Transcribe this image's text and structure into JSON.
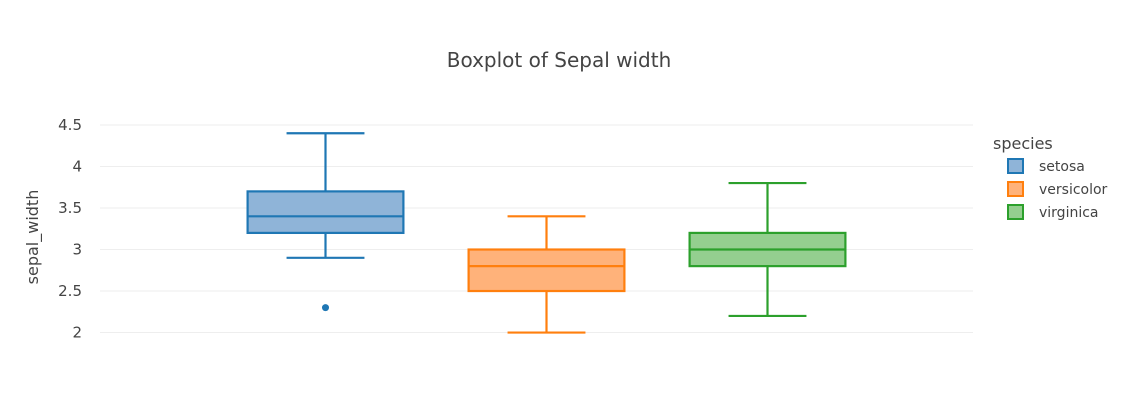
{
  "chart_data": {
    "type": "box",
    "title": "Boxplot of Sepal width",
    "xlabel": "",
    "ylabel": "sepal_width",
    "ylim": [
      1.85,
      4.62
    ],
    "yticks": [
      2,
      2.5,
      3,
      3.5,
      4,
      4.5
    ],
    "ytick_labels": [
      "2",
      "2.5",
      "3",
      "3.5",
      "4",
      "4.5"
    ],
    "grid": true,
    "legend": {
      "title": "species",
      "placement": "right"
    },
    "series": [
      {
        "name": "setosa",
        "color": "#1f77b4",
        "fill": "#8fb4d8",
        "min": 2.9,
        "q1": 3.2,
        "median": 3.4,
        "q3": 3.7,
        "max": 4.4,
        "outliers": [
          2.3
        ]
      },
      {
        "name": "versicolor",
        "color": "#ff7f0e",
        "fill": "#ffb27a",
        "min": 2.0,
        "q1": 2.5,
        "median": 2.8,
        "q3": 3.0,
        "max": 3.4,
        "outliers": []
      },
      {
        "name": "virginica",
        "color": "#2ca02c",
        "fill": "#94cf8f",
        "min": 2.2,
        "q1": 2.8,
        "median": 3.0,
        "q3": 3.2,
        "max": 3.8,
        "outliers": []
      }
    ]
  }
}
